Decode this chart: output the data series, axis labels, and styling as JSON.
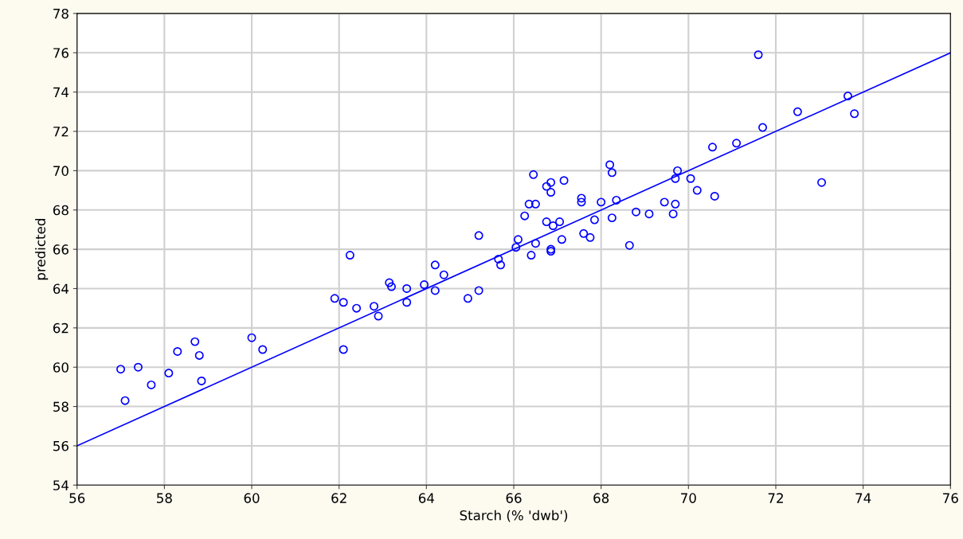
{
  "chart_data": {
    "type": "scatter",
    "xlabel": "Starch (% 'dwb')",
    "ylabel": "predicted",
    "xlim": [
      56,
      76
    ],
    "ylim": [
      54,
      78
    ],
    "xticks": [
      56,
      58,
      60,
      62,
      64,
      66,
      68,
      70,
      72,
      74,
      76
    ],
    "yticks": [
      54,
      56,
      58,
      60,
      62,
      64,
      66,
      68,
      70,
      72,
      74,
      76,
      78
    ],
    "grid": true,
    "marker": "circle",
    "series": [
      {
        "color": "#0000ff",
        "x": [
          57.0,
          57.1,
          57.4,
          57.7,
          58.1,
          58.3,
          58.7,
          58.8,
          58.85,
          60.0,
          60.25,
          61.9,
          62.1,
          62.1,
          62.25,
          62.4,
          62.8,
          62.9,
          63.15,
          63.2,
          63.55,
          63.55,
          63.95,
          64.2,
          64.2,
          64.4,
          64.95,
          65.2,
          65.2,
          65.65,
          65.7,
          66.05,
          66.1,
          66.25,
          66.35,
          66.4,
          66.45,
          66.5,
          66.5,
          66.75,
          66.75,
          66.85,
          66.85,
          66.85,
          66.85,
          66.9,
          67.05,
          67.1,
          67.15,
          67.55,
          67.55,
          67.6,
          67.75,
          67.85,
          68.0,
          68.2,
          68.25,
          68.25,
          68.35,
          68.65,
          68.8,
          69.1,
          69.45,
          69.65,
          69.7,
          69.7,
          69.75,
          70.05,
          70.2,
          70.55,
          70.6,
          71.1,
          71.6,
          71.7,
          72.5,
          73.05,
          73.65,
          73.8
        ],
        "values": [
          59.9,
          58.3,
          60.0,
          59.1,
          59.7,
          60.8,
          61.3,
          60.6,
          59.3,
          61.5,
          60.9,
          63.5,
          63.3,
          60.9,
          65.7,
          63.0,
          63.1,
          62.6,
          64.3,
          64.1,
          64.0,
          63.3,
          64.2,
          65.2,
          63.9,
          64.7,
          63.5,
          66.7,
          63.9,
          65.5,
          65.2,
          66.1,
          66.5,
          67.7,
          68.3,
          65.7,
          69.8,
          68.3,
          66.3,
          67.4,
          69.2,
          69.4,
          68.9,
          65.9,
          66.0,
          67.2,
          67.4,
          66.5,
          69.5,
          68.6,
          68.4,
          66.8,
          66.6,
          67.5,
          68.4,
          70.3,
          69.9,
          67.6,
          68.5,
          66.2,
          67.9,
          67.8,
          68.4,
          67.8,
          68.3,
          69.6,
          70.0,
          69.6,
          69.0,
          71.2,
          68.7,
          71.4,
          75.9,
          72.2,
          73.0,
          69.4,
          73.8,
          72.9
        ]
      },
      {
        "type": "line",
        "color": "#0000ff",
        "x": [
          56,
          76
        ],
        "values": [
          56,
          76
        ],
        "marker": "none",
        "line_style": "solid"
      }
    ]
  }
}
